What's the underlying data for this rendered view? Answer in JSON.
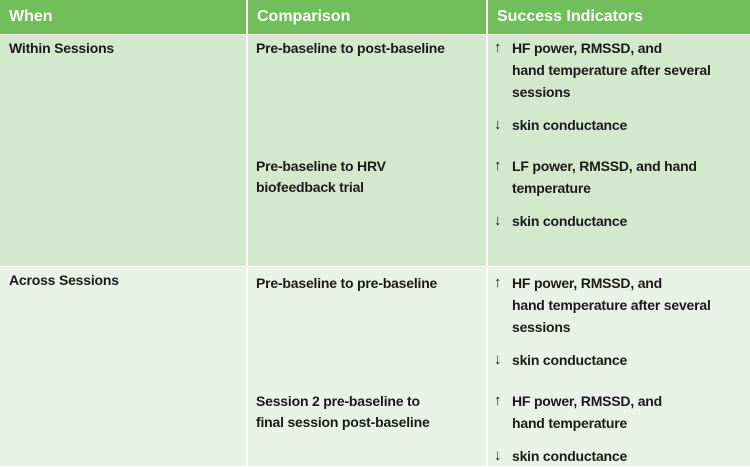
{
  "table": {
    "headers": [
      "When",
      "Comparison",
      "Success Indicators"
    ],
    "rows": [
      {
        "when": "Within Sessions",
        "comparisons": [
          {
            "lines": [
              "Pre-baseline to post-baseline"
            ],
            "indicators": [
              {
                "arrow": "↑",
                "lines": [
                  "HF power, RMSSD, and",
                  "hand temperature after several",
                  "sessions"
                ]
              },
              {
                "arrow": "↓",
                "lines": [
                  "skin conductance"
                ]
              }
            ]
          },
          {
            "lines": [
              "Pre-baseline to HRV",
              "biofeedback trial"
            ],
            "indicators": [
              {
                "arrow": "↑",
                "lines": [
                  "LF power, RMSSD, and hand",
                  "temperature"
                ]
              },
              {
                "arrow": "↓",
                "lines": [
                  "skin conductance"
                ]
              }
            ]
          }
        ]
      },
      {
        "when": "Across Sessions",
        "comparisons": [
          {
            "lines": [
              "Pre-baseline to pre-baseline"
            ],
            "indicators": [
              {
                "arrow": "↑",
                "lines": [
                  "HF power, RMSSD, and",
                  "hand temperature after several",
                  "sessions"
                ]
              },
              {
                "arrow": "↓",
                "lines": [
                  "skin conductance"
                ]
              }
            ]
          },
          {
            "lines": [
              "Session 2 pre-baseline to",
              "final session post-baseline"
            ],
            "indicators": [
              {
                "arrow": "↑",
                "lines": [
                  "HF power, RMSSD, and",
                  "hand temperature"
                ]
              },
              {
                "arrow": "↓",
                "lines": [
                  "skin conductance"
                ]
              }
            ]
          }
        ]
      }
    ]
  }
}
